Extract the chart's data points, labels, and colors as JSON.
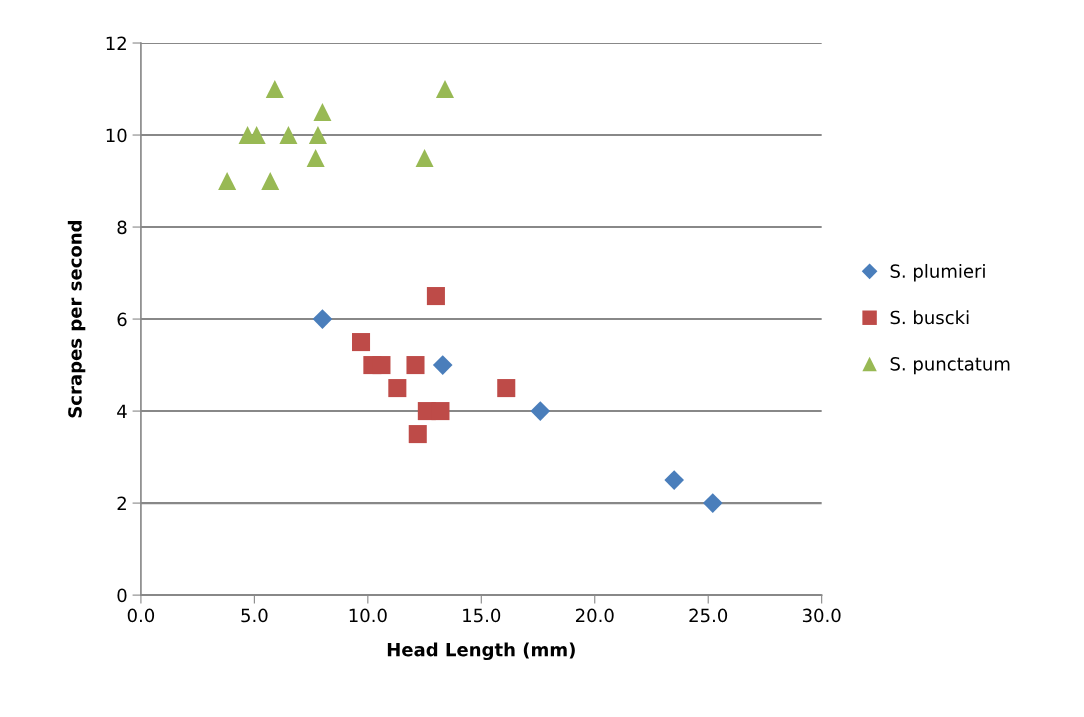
{
  "chart_data": {
    "type": "scatter",
    "xlabel": "Head Length (mm)",
    "ylabel": "Scrapes per second",
    "xlim": [
      0,
      30
    ],
    "xticks": [
      {
        "value": 0,
        "label": "0.0"
      },
      {
        "value": 5,
        "label": "5.0"
      },
      {
        "value": 10,
        "label": "10.0"
      },
      {
        "value": 15,
        "label": "15.0"
      },
      {
        "value": 20,
        "label": "20.0"
      },
      {
        "value": 25,
        "label": "25.0"
      },
      {
        "value": 30,
        "label": "30.0"
      }
    ],
    "ylim": [
      0,
      12
    ],
    "yticks": [
      0,
      2,
      4,
      6,
      8,
      10,
      12
    ],
    "grid": "y",
    "legend": "right",
    "series": [
      {
        "name": "S. plumieri",
        "color": "#4a7ebb",
        "marker": "diamond",
        "x": [
          8.0,
          13.3,
          17.6,
          23.5,
          25.2
        ],
        "values": [
          6,
          5,
          4,
          2.5,
          2
        ]
      },
      {
        "name": "S. buscki",
        "color": "#be4b48",
        "marker": "square",
        "x": [
          9.7,
          10.2,
          10.6,
          11.3,
          12.1,
          12.2,
          12.6,
          13.2,
          13.0,
          16.1
        ],
        "values": [
          5.5,
          5,
          5,
          4.5,
          5,
          3.5,
          4,
          4,
          6.5,
          4.5
        ]
      },
      {
        "name": "S. punctatum",
        "color": "#98b954",
        "marker": "triangle",
        "x": [
          3.8,
          4.7,
          5.1,
          5.9,
          5.7,
          6.5,
          7.7,
          7.8,
          8.0,
          12.5,
          13.4
        ],
        "values": [
          9,
          10,
          10,
          11,
          9,
          10,
          9.5,
          10,
          10.5,
          9.5,
          11
        ]
      }
    ]
  }
}
